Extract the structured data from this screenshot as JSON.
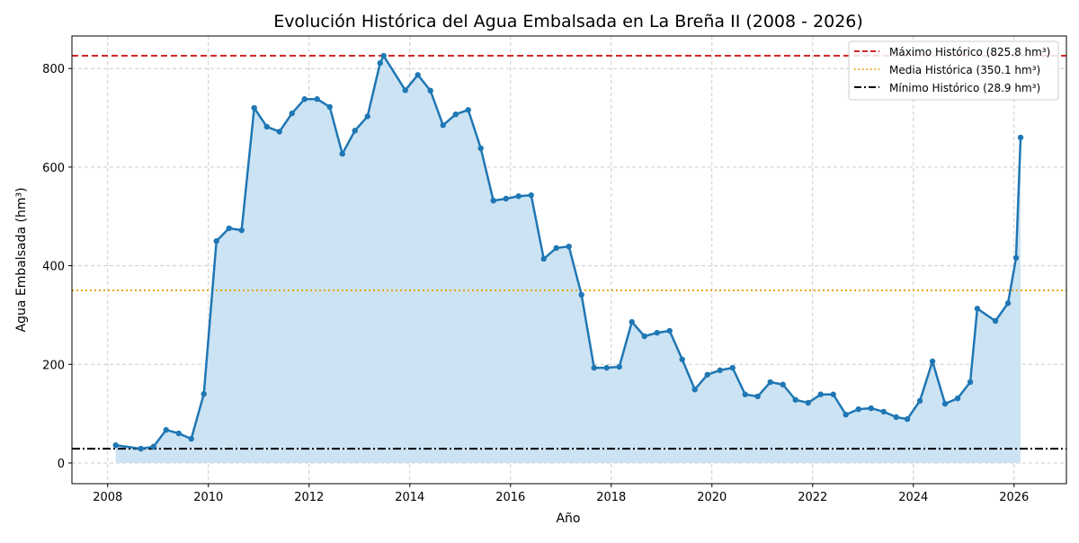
{
  "chart_data": {
    "type": "area",
    "title": "Evolución Histórica del Agua Embalsada en La Breña II (2008 - 2026)",
    "xlabel": "Año",
    "ylabel": "Agua Embalsada (hm³)",
    "xlim": [
      2007.29,
      2027.04
    ],
    "ylim": [
      -42,
      866
    ],
    "xticks": [
      2008,
      2010,
      2012,
      2014,
      2016,
      2018,
      2020,
      2022,
      2024,
      2026
    ],
    "yticks": [
      0,
      200,
      400,
      600,
      800
    ],
    "grid": true,
    "legend_position": "top-right",
    "colors": {
      "series": "#1f77b4",
      "fill": "#c9e1f2",
      "max": "#d62728",
      "mean": "#e3a80c",
      "min": "#000000"
    },
    "series": [
      {
        "x": [
          2008.16,
          2008.66,
          2008.91,
          2009.16,
          2009.41,
          2009.66,
          2009.91,
          2010.16,
          2010.41,
          2010.66,
          2010.91,
          2011.16,
          2011.41,
          2011.66,
          2011.91,
          2012.16,
          2012.41,
          2012.66,
          2012.91,
          2013.16,
          2013.41,
          2013.48,
          2013.91,
          2014.16,
          2014.41,
          2014.66,
          2014.91,
          2015.16,
          2015.41,
          2015.66,
          2015.91,
          2016.16,
          2016.41,
          2016.66,
          2016.91,
          2017.16,
          2017.41,
          2017.66,
          2017.91,
          2018.16,
          2018.41,
          2018.66,
          2018.91,
          2019.16,
          2019.41,
          2019.66,
          2019.91,
          2020.16,
          2020.41,
          2020.66,
          2020.91,
          2021.16,
          2021.41,
          2021.66,
          2021.91,
          2022.16,
          2022.41,
          2022.66,
          2022.91,
          2023.16,
          2023.41,
          2023.66,
          2023.88,
          2024.13,
          2024.38,
          2024.63,
          2024.88,
          2025.13,
          2025.27,
          2025.63,
          2025.88,
          2026.04,
          2026.13
        ],
        "y": [
          36,
          29,
          33,
          67,
          60,
          49,
          140,
          450,
          476,
          472,
          720,
          682,
          672,
          709,
          738,
          738,
          722,
          627,
          674,
          703,
          811,
          825.8,
          756,
          787,
          755,
          685,
          707,
          716,
          638,
          532,
          536,
          541,
          543,
          414,
          436,
          439,
          341,
          193,
          193,
          195,
          286,
          257,
          264,
          268,
          210,
          149,
          179,
          188,
          193,
          139,
          135,
          164,
          159,
          128,
          122,
          139,
          139,
          98,
          109,
          111,
          104,
          93,
          89,
          126,
          206,
          120,
          131,
          164,
          313,
          288,
          324,
          416,
          660
        ]
      }
    ],
    "reference_lines": [
      {
        "label": "Máximo Histórico (825.8 hm³)",
        "value": 825.8,
        "style": "dashed"
      },
      {
        "label": "Media Histórica (350.1 hm³)",
        "value": 350.1,
        "style": "dotted"
      },
      {
        "label": "Mínimo Histórico (28.9 hm³)",
        "value": 28.9,
        "style": "dashdot"
      }
    ]
  }
}
